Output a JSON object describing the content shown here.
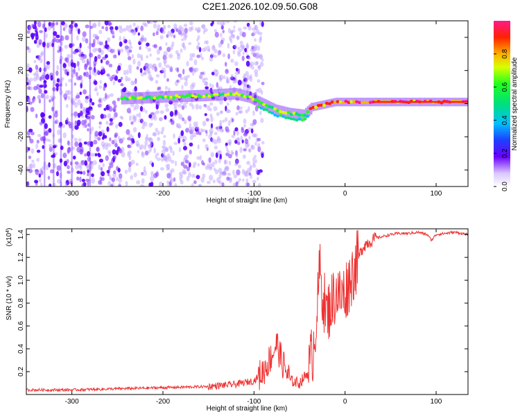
{
  "chart_data": [
    {
      "type": "heatmap",
      "title": "C2E1.2026.102.09.50.G08",
      "xlabel": "Height of straight line (km)",
      "ylabel": "Frequency (Hz)",
      "xlim": [
        -350,
        135
      ],
      "ylim": [
        -50,
        50
      ],
      "xticks": [
        -300,
        -200,
        -100,
        0,
        100
      ],
      "xtick_labels": [
        "-300",
        "-200",
        "-100",
        "0",
        "100"
      ],
      "yticks": [
        -40,
        -20,
        0,
        20,
        40
      ],
      "ytick_labels": [
        "-40",
        "-20",
        "0",
        "20",
        "40"
      ],
      "colorbar": {
        "label": "Normalized spectral amplitude",
        "range": [
          0,
          1
        ],
        "ticks": [
          0.0,
          0.2,
          0.4,
          0.6,
          0.8
        ],
        "tick_labels": [
          "0.0",
          "0.2",
          "0.4",
          "0.6",
          "0.8"
        ]
      },
      "ridge": [
        {
          "x": -245,
          "f": 3
        },
        {
          "x": -200,
          "f": 4
        },
        {
          "x": -150,
          "f": 5
        },
        {
          "x": -120,
          "f": 6
        },
        {
          "x": -105,
          "f": 4
        },
        {
          "x": -90,
          "f": 0
        },
        {
          "x": -75,
          "f": -4
        },
        {
          "x": -60,
          "f": -6
        },
        {
          "x": -45,
          "f": -7
        },
        {
          "x": -35,
          "f": -2
        },
        {
          "x": -10,
          "f": 1
        },
        {
          "x": 30,
          "f": 1
        },
        {
          "x": 80,
          "f": 1
        },
        {
          "x": 135,
          "f": 1
        }
      ]
    },
    {
      "type": "line",
      "xlabel": "Height of straight line (km)",
      "ylabel": "SNR (10 * v/v)",
      "y_scale_label": "(x10",
      "y_scale_exp": "4",
      "y_scale_close": ")",
      "xlim": [
        -350,
        135
      ],
      "ylim": [
        0,
        1.45
      ],
      "xticks": [
        -300,
        -200,
        -100,
        0,
        100
      ],
      "xtick_labels": [
        "-300",
        "-200",
        "-100",
        "0",
        "100"
      ],
      "yticks": [
        0.2,
        0.4,
        0.6,
        0.8,
        1.0,
        1.2,
        1.4
      ],
      "ytick_labels": [
        "0.2",
        "0.4",
        "0.6",
        "0.8",
        "1.0",
        "1.2",
        "1.4"
      ],
      "color": "#ee3333",
      "series": [
        {
          "name": "SNR",
          "x": [
            -350,
            -300,
            -250,
            -200,
            -150,
            -120,
            -100,
            -90,
            -80,
            -75,
            -70,
            -60,
            -50,
            -40,
            -35,
            -30,
            -28,
            -25,
            -20,
            -15,
            -10,
            -5,
            0,
            5,
            10,
            15,
            20,
            25,
            30,
            35,
            40,
            50,
            60,
            70,
            80,
            90,
            95,
            100,
            110,
            120,
            135
          ],
          "y": [
            0.04,
            0.04,
            0.05,
            0.06,
            0.07,
            0.09,
            0.12,
            0.2,
            0.35,
            0.45,
            0.3,
            0.12,
            0.1,
            0.2,
            0.4,
            0.8,
            1.1,
            0.9,
            0.7,
            0.8,
            0.9,
            0.85,
            0.9,
            1.0,
            1.1,
            1.2,
            1.3,
            1.33,
            1.35,
            1.37,
            1.38,
            1.4,
            1.41,
            1.41,
            1.42,
            1.4,
            1.35,
            1.4,
            1.41,
            1.42,
            1.4
          ]
        }
      ]
    }
  ]
}
